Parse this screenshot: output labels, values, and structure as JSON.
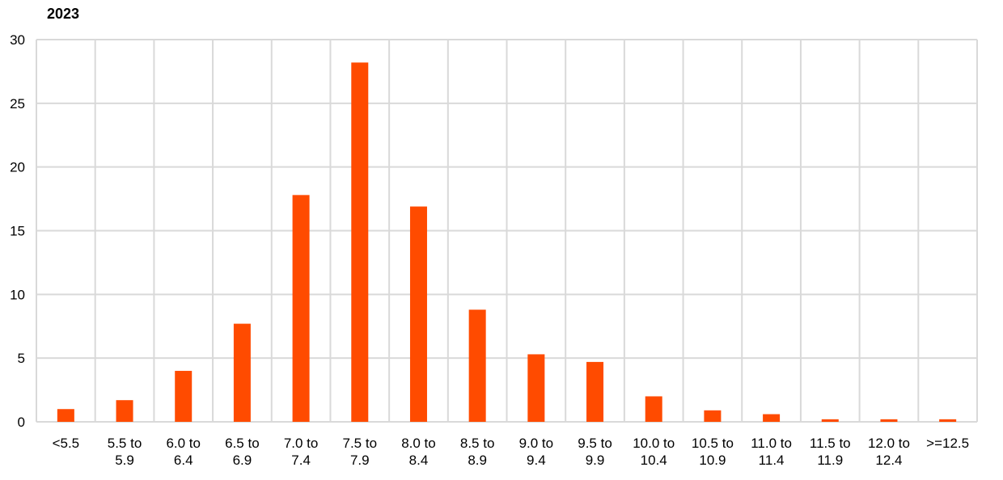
{
  "chart_data": {
    "type": "bar",
    "title": "2023",
    "categories": [
      "<5.5",
      "5.5 to 5.9",
      "6.0 to 6.4",
      "6.5 to 6.9",
      "7.0 to 7.4",
      "7.5 to 7.9",
      "8.0 to 8.4",
      "8.5 to 8.9",
      "9.0 to 9.4",
      "9.5 to 9.9",
      "10.0 to 10.4",
      "10.5 to 10.9",
      "11.0 to 11.4",
      "11.5 to 11.9",
      "12.0 to 12.4",
      ">=12.5"
    ],
    "values": [
      1.0,
      1.7,
      4.0,
      7.7,
      17.8,
      28.2,
      16.9,
      8.8,
      5.3,
      4.7,
      2.0,
      0.9,
      0.6,
      0.2,
      0.2,
      0.2
    ],
    "color": "#ff4b00",
    "ylim": [
      0,
      30
    ],
    "yticks": [
      0,
      5,
      10,
      15,
      20,
      25,
      30
    ],
    "grid": true
  }
}
